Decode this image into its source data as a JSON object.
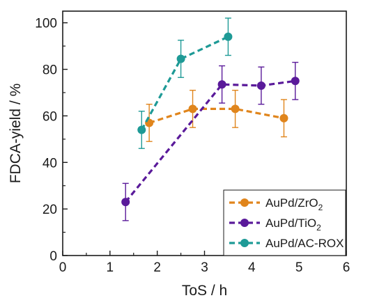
{
  "chart_data": {
    "type": "line",
    "xlabel": "ToS / h",
    "ylabel": "FDCA-yield / %",
    "xlim": [
      0,
      6
    ],
    "ylim": [
      0,
      105
    ],
    "x_ticks": [
      0,
      1,
      2,
      3,
      4,
      5,
      6
    ],
    "y_ticks": [
      0,
      20,
      40,
      60,
      80,
      100
    ],
    "grid": false,
    "legend_position": "bottom-right",
    "series": [
      {
        "name": "AuPd/ZrO",
        "name_subscript": "2",
        "color": "#e0851c",
        "points": [
          {
            "x": 1.83,
            "y": 57,
            "err": 8
          },
          {
            "x": 2.75,
            "y": 63,
            "err": 8
          },
          {
            "x": 3.65,
            "y": 63,
            "err": 8
          },
          {
            "x": 4.68,
            "y": 59,
            "err": 8
          }
        ]
      },
      {
        "name": "AuPd/TiO",
        "name_subscript": "2",
        "color": "#5a1a9a",
        "points": [
          {
            "x": 1.33,
            "y": 23,
            "err": 8
          },
          {
            "x": 3.37,
            "y": 73.5,
            "err": 8
          },
          {
            "x": 4.2,
            "y": 73,
            "err": 8
          },
          {
            "x": 4.92,
            "y": 75,
            "err": 8
          }
        ]
      },
      {
        "name": "AuPd/AC-ROX",
        "name_subscript": "",
        "color": "#1e9a96",
        "points": [
          {
            "x": 1.67,
            "y": 54,
            "err": 8
          },
          {
            "x": 2.5,
            "y": 84.5,
            "err": 8
          },
          {
            "x": 3.5,
            "y": 94,
            "err": 8
          }
        ]
      }
    ]
  }
}
